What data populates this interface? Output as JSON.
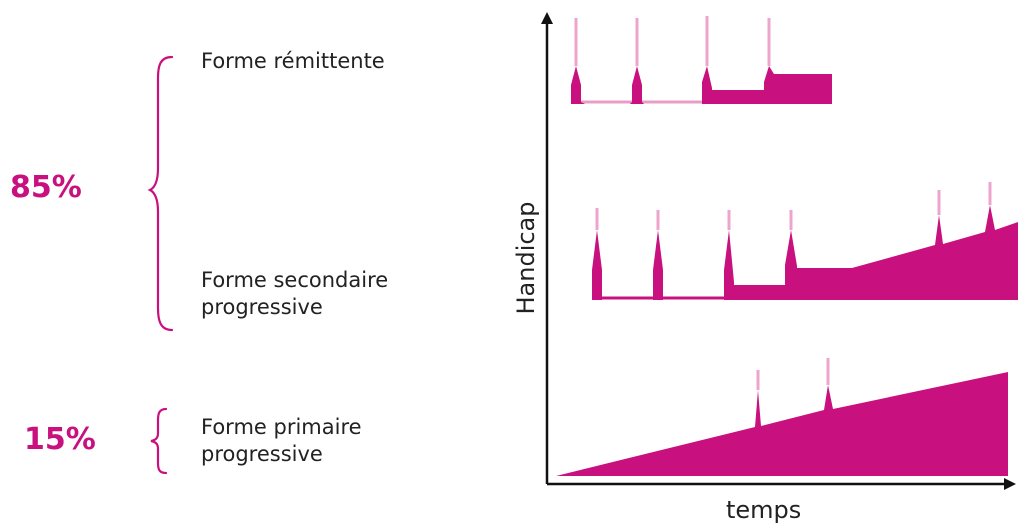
{
  "groups": [
    {
      "percentage": "85%",
      "forms": [
        "Forme rémittente",
        "Forme secondaire\nprogressive"
      ]
    },
    {
      "percentage": "15%",
      "forms": [
        "Forme primaire\nprogressive"
      ]
    }
  ],
  "axes": {
    "y_label": "Handicap",
    "x_label": "temps"
  },
  "colors": {
    "accent": "#c8107e",
    "spike_tip": "#eea4cc",
    "text": "#222222",
    "axis": "#111111"
  },
  "chart_data": {
    "type": "area",
    "xlabel": "temps",
    "ylabel": "Handicap",
    "series": [
      {
        "name": "Forme rémittente",
        "relapses": 4,
        "pattern": "relapses with incomplete recovery, stepwise increase"
      },
      {
        "name": "Forme secondaire progressive",
        "relapses": 6,
        "pattern": "relapses then steady progression"
      },
      {
        "name": "Forme primaire progressive",
        "relapses": 2,
        "pattern": "progressive from onset"
      }
    ]
  }
}
